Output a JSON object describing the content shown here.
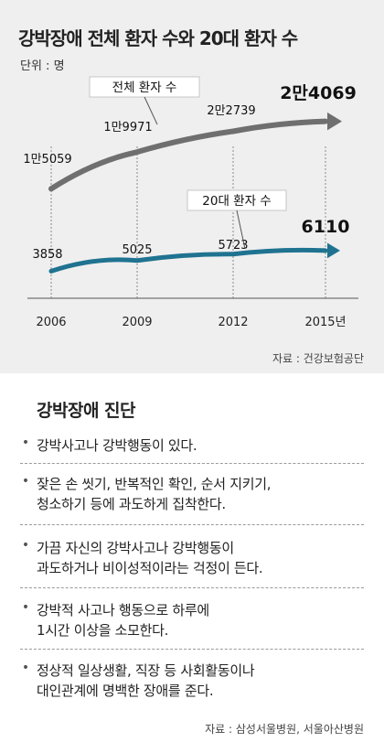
{
  "chart_data": {
    "type": "line",
    "title": "강박장애 전체 환자 수와 20대 환자 수",
    "unit_label": "단위 : 명",
    "x": [
      "2006",
      "2009",
      "2012",
      "2015년"
    ],
    "series": [
      {
        "name": "전체 환자 수",
        "values": [
          15059,
          19971,
          22739,
          24069
        ],
        "labels": [
          "1만5059",
          "1만9971",
          "2만2739",
          "2만4069"
        ],
        "color": "#6f6f6f"
      },
      {
        "name": "20대 환자 수",
        "values": [
          3858,
          5025,
          5723,
          6110
        ],
        "labels": [
          "3858",
          "5025",
          "5723",
          "6110"
        ],
        "color": "#1f7390"
      }
    ],
    "source": "자료 : 건강보험공단"
  },
  "checklist": {
    "title": "강박장애 진단",
    "bullet": "•",
    "items": [
      {
        "lines": [
          "강박사고나 강박행동이 있다."
        ]
      },
      {
        "lines": [
          "잦은 손 씻기, 반복적인 확인, 순서 지키기,",
          "청소하기 등에 과도하게 집착한다."
        ]
      },
      {
        "lines": [
          "가끔 자신의 강박사고나 강박행동이",
          "과도하거나 비이성적이라는 걱정이 든다."
        ]
      },
      {
        "lines": [
          "강박적 사고나 행동으로 하루에",
          "1시간 이상을 소모한다."
        ]
      },
      {
        "lines": [
          "정상적 일상생활, 직장 등 사회활동이나",
          "대인관계에 명백한 장애를 준다."
        ]
      }
    ],
    "source": "자료 : 삼성서울병원, 서울아산병원"
  }
}
